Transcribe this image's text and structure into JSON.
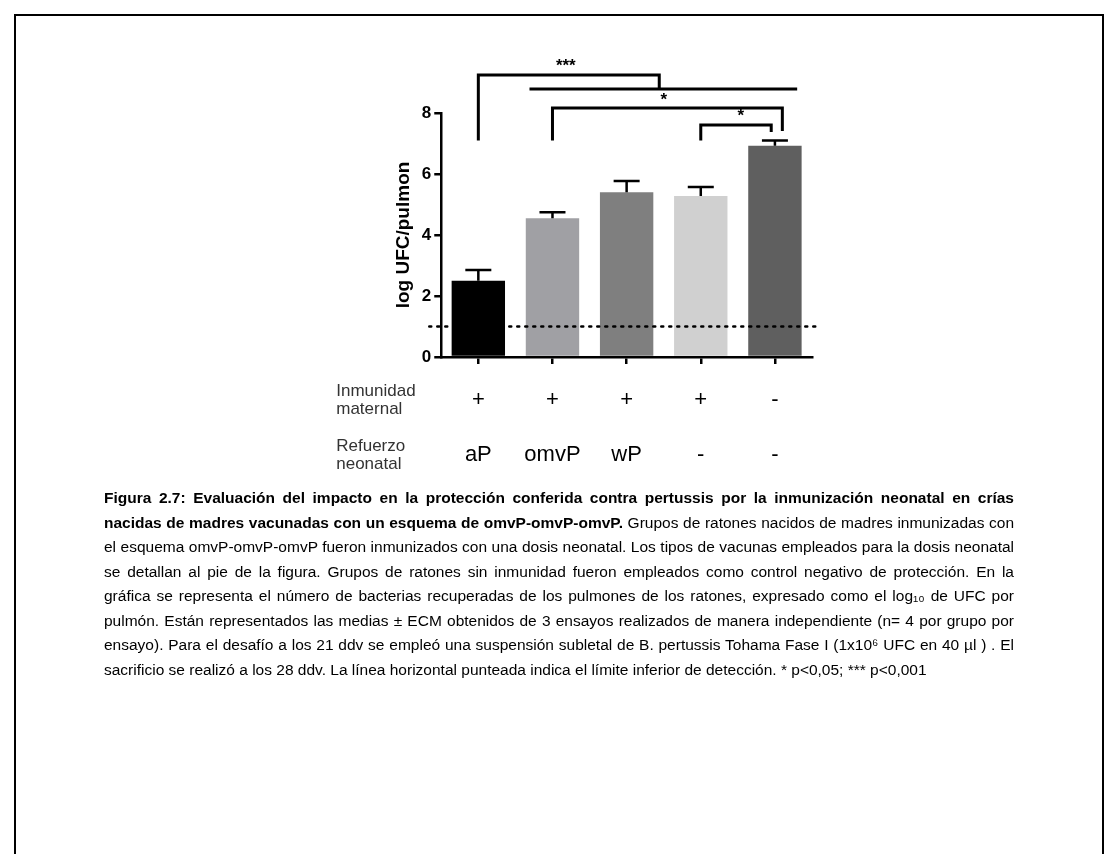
{
  "chart_data": {
    "type": "bar",
    "title": "Figura 2.7: Evaluación del impacto en la protección conferida contra pertussis por la inmunización neonatal en crías nacidas de madres vacunadas con un esquema de omvP-omvP-omvP.",
    "ylabel": "log UFC/pulmon",
    "categories": [
      "+\naP",
      "+\nomvP",
      "+\nwP",
      "+\n-",
      "-\n-"
    ],
    "values": [
      2.5,
      4.55,
      5.4,
      5.28,
      6.93
    ],
    "colors": [
      "#000000",
      "#a0a0a4",
      "#7f7f7f",
      "#d0d0d0",
      "#5f5f5f"
    ],
    "errors": [
      [
        2.5,
        2.85
      ],
      [
        4.55,
        4.75
      ],
      [
        5.4,
        5.77
      ],
      [
        5.28,
        5.57
      ],
      [
        6.93,
        7.1
      ]
    ],
    "ylim": [
      0,
      8
    ],
    "yticks": [
      0,
      2,
      4,
      6,
      8
    ],
    "ref_lines": [
      {
        "axis": "y",
        "value": 1,
        "line_style": "dotted",
        "color": "#000000"
      }
    ],
    "annotations": [
      "Inmunidad maternal",
      "Refuerzo neonatal",
      "***",
      "*",
      "*",
      "Grupos de ratones nacidos de madres inmunizadas con el esquema omvP-omvP-omvP fueron inmunizados con una dosis neonatal. Los tipos de vacunas empleados para la dosis neonatal se detallan al pie de la figura. Grupos de ratones sin inmunidad fueron empleados como control negativo de protección. En la gráfica se representa el número de bacterias recuperadas de los pulmones de los ratones, expresado como el log₁₀ de UFC por pulmón. Están representados las medias ± ECM obtenidos de 3 ensayos realizados de manera independiente (n= 4 por grupo por ensayo). Para el desafío a los 21 ddv se empleó una suspensión subletal de B. pertussis Tohama Fase I (1x10⁶ UFC en 40 µl ) . El sacrificio se realizó a los 28 ddv. La línea horizontal punteada indica el límite inferior de detección. * p<0,05; *** p<0,001"
    ]
  }
}
